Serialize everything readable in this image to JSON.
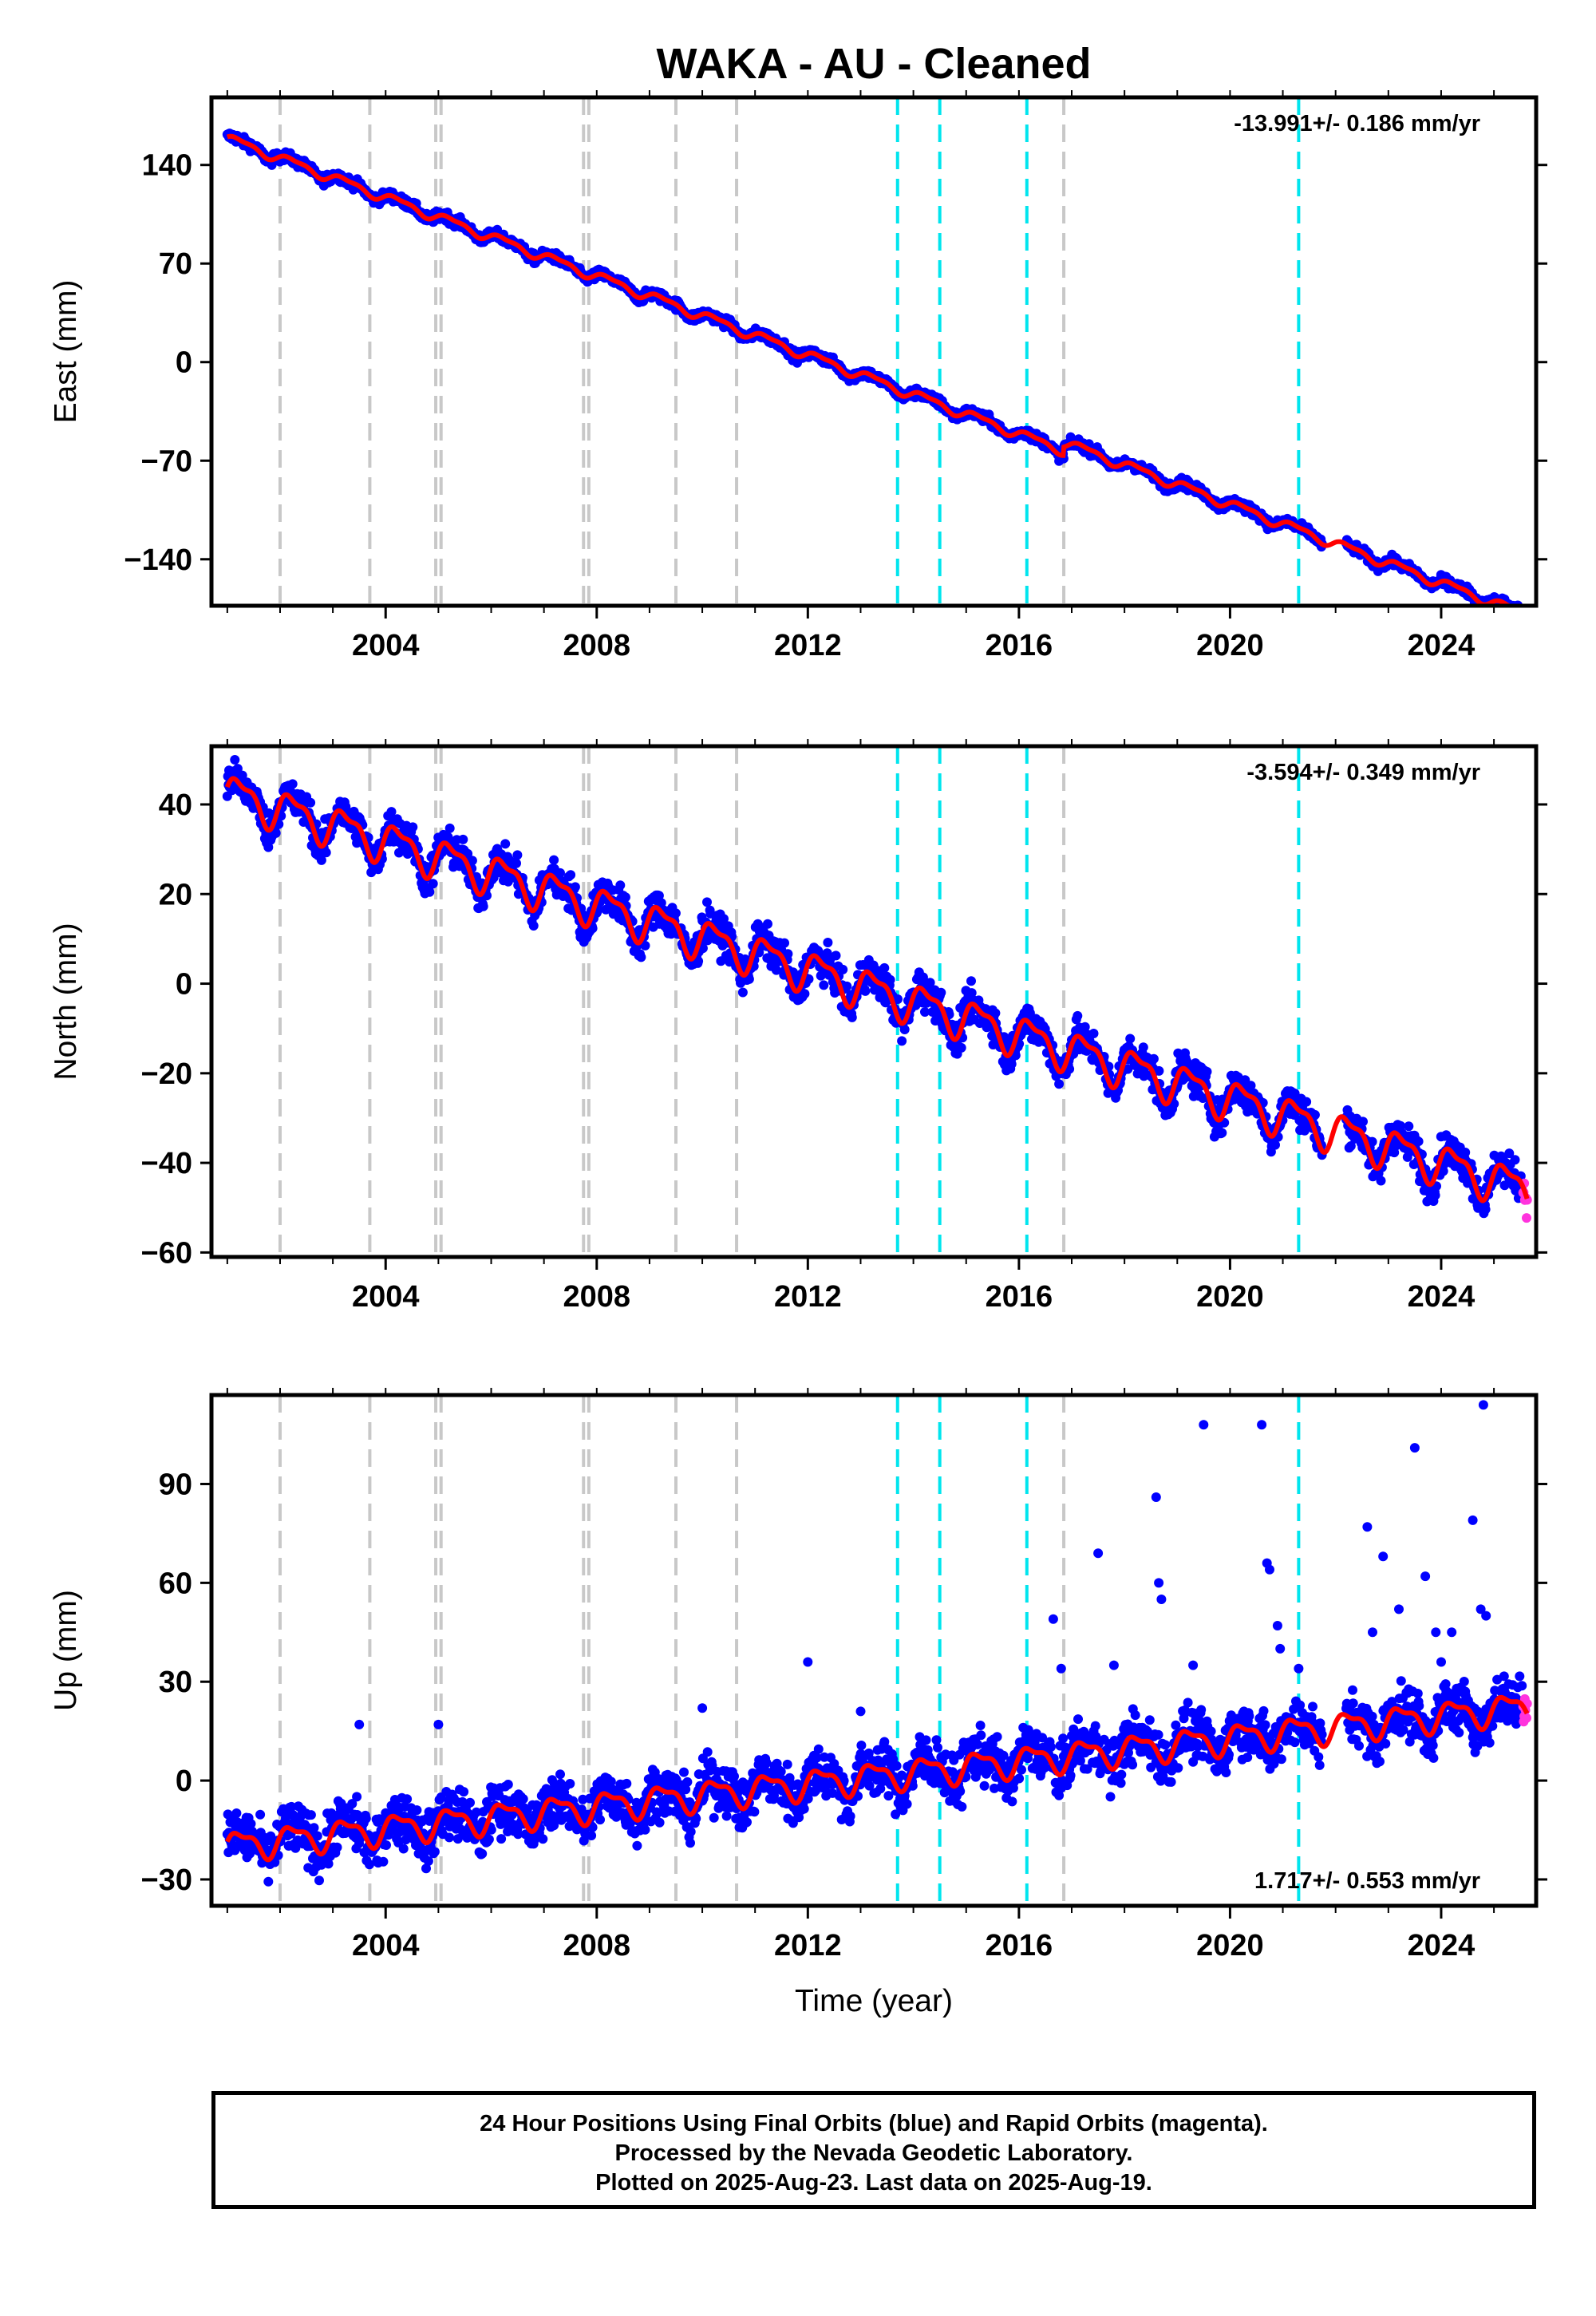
{
  "title": "WAKA  - AU - Cleaned",
  "xlabel": "Time (year)",
  "footer": {
    "line1": "24 Hour Positions Using Final Orbits (blue) and Rapid Orbits (magenta).",
    "line2": "Processed by the Nevada Geodetic Laboratory.",
    "line3": "Plotted on 2025-Aug-23. Last data on 2025-Aug-19."
  },
  "colors": {
    "final_orbits": "#0000ff",
    "rapid_orbits": "#ff33dd",
    "model": "#ff0000",
    "gray_events": "#c8c8c8",
    "cyan_events": "#00e5ee"
  },
  "chart_data": [
    {
      "type": "scatter",
      "panel": "east",
      "ylabel": "East (mm)",
      "rate_label": "-13.991+/- 0.186 mm/yr",
      "rate_position": "top-right",
      "xlim": [
        2000.7,
        2025.8
      ],
      "ylim": [
        -173,
        188
      ],
      "yticks": [
        -140,
        -70,
        0,
        70,
        140
      ],
      "yticklabels": [
        "−140",
        "−70",
        "0",
        "70",
        "140"
      ],
      "xticks": [
        2004,
        2008,
        2012,
        2016,
        2020,
        2024
      ],
      "rate": -13.991,
      "offset_at_2012": 5,
      "seasonal_amp": 3,
      "noise": 2.5,
      "start": 2001.0,
      "end": 2025.63,
      "gaps": [
        [
          2021.75,
          2022.2
        ]
      ],
      "steps": [
        [
          2016.85,
          6
        ]
      ],
      "rapid_from": 2025.55
    },
    {
      "type": "scatter",
      "panel": "north",
      "ylabel": "North (mm)",
      "rate_label": "-3.594+/- 0.349 mm/yr",
      "rate_position": "top-right",
      "xlim": [
        2000.7,
        2025.8
      ],
      "ylim": [
        -61,
        53
      ],
      "yticks": [
        -60,
        -40,
        -20,
        0,
        20,
        40
      ],
      "yticklabels": [
        "−60",
        "−40",
        "−20",
        "0",
        "20",
        "40"
      ],
      "xticks": [
        2004,
        2008,
        2012,
        2016,
        2020,
        2024
      ],
      "rate": -3.594,
      "offset_at_2012": 3,
      "seasonal_amp": 4,
      "noise": 2.8,
      "start": 2001.0,
      "end": 2025.63,
      "gaps": [
        [
          2021.75,
          2022.2
        ]
      ],
      "steps": [],
      "rapid_from": 2025.55
    },
    {
      "type": "scatter",
      "panel": "up",
      "ylabel": "Up (mm)",
      "rate_label": "1.717+/- 0.553 mm/yr",
      "rate_position": "bottom-right",
      "xlim": [
        2000.7,
        2025.8
      ],
      "ylim": [
        -38,
        117
      ],
      "yticks": [
        -30,
        0,
        30,
        60,
        90
      ],
      "yticklabels": [
        "−30",
        "0",
        "30",
        "60",
        "90"
      ],
      "xticks": [
        2004,
        2008,
        2012,
        2016,
        2020,
        2024
      ],
      "rate": 1.717,
      "offset_at_2012": -1,
      "seasonal_amp": 4,
      "noise": 5.5,
      "start": 2001.0,
      "end": 2025.63,
      "gaps": [
        [
          2021.75,
          2022.2
        ]
      ],
      "steps": [],
      "rapid_from": 2025.55,
      "outliers": [
        [
          2017.5,
          69
        ],
        [
          2018.6,
          86
        ],
        [
          2018.65,
          60
        ],
        [
          2018.7,
          55
        ],
        [
          2019.5,
          108
        ],
        [
          2020.6,
          108
        ],
        [
          2020.7,
          66
        ],
        [
          2020.75,
          64
        ],
        [
          2020.9,
          47
        ],
        [
          2020.95,
          40
        ],
        [
          2022.6,
          77
        ],
        [
          2022.7,
          45
        ],
        [
          2022.9,
          68
        ],
        [
          2023.2,
          52
        ],
        [
          2023.5,
          101
        ],
        [
          2023.7,
          62
        ],
        [
          2023.9,
          45
        ],
        [
          2024.0,
          36
        ],
        [
          2024.2,
          45
        ],
        [
          2024.6,
          79
        ],
        [
          2024.75,
          52
        ],
        [
          2024.8,
          114
        ],
        [
          2024.85,
          50
        ],
        [
          2016.65,
          49
        ],
        [
          2016.8,
          34
        ],
        [
          2012.0,
          36
        ],
        [
          2013.0,
          21
        ],
        [
          2010.0,
          22
        ],
        [
          2005.0,
          17
        ],
        [
          2003.5,
          17
        ],
        [
          2017.8,
          35
        ],
        [
          2021.3,
          34
        ],
        [
          2019.3,
          35
        ]
      ]
    }
  ],
  "events": {
    "gray": [
      2002.0,
      2003.7,
      2004.95,
      2005.05,
      2007.75,
      2007.85,
      2009.5,
      2010.65,
      2016.85
    ],
    "cyan": [
      2013.7,
      2014.5,
      2016.15,
      2021.3
    ]
  }
}
